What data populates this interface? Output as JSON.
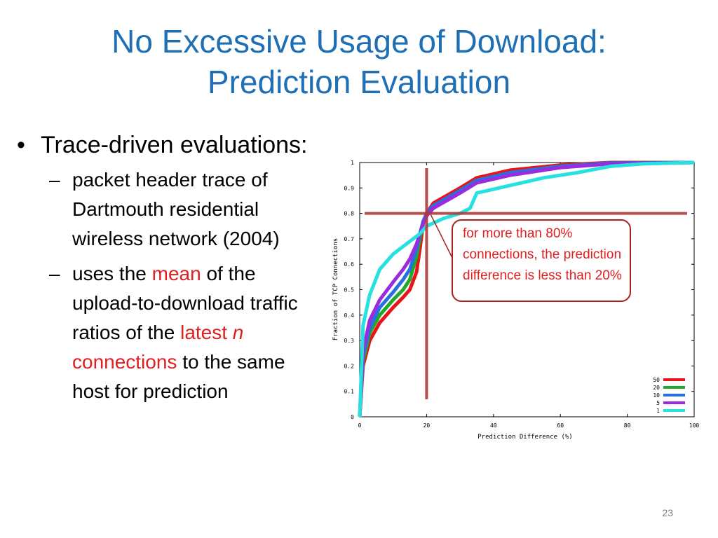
{
  "slide": {
    "title_line1": "No Excessive Usage of Download:",
    "title_line2": "Prediction Evaluation",
    "page_number": "23",
    "bullet1": {
      "marker": "•",
      "text": "Trace-driven evaluations:"
    },
    "sub1": {
      "marker": "–",
      "text": "packet header trace of Dartmouth residential wireless network (2004)"
    },
    "sub2": {
      "marker": "–",
      "part1": "uses the ",
      "highlight1": "mean",
      "part2": " of the upload-to-download traffic ratios of the ",
      "highlight2a": "latest ",
      "highlight2b": "n",
      "highlight2c": " connections",
      "part3": " to the same host for prediction"
    },
    "callout": "for more than 80% connections, the prediction difference is less than 20%",
    "colors": {
      "title": "#1f6fb5",
      "highlight": "#e02020",
      "callout_border": "#a82020",
      "crosshair": "#b03a3a"
    }
  },
  "chart_data": {
    "type": "line",
    "xlabel": "Prediction Difference (%)",
    "ylabel": "Fraction of TCP Connections",
    "xlim": [
      0,
      100
    ],
    "ylim": [
      0,
      1
    ],
    "xticks": [
      "0",
      "20",
      "40",
      "60",
      "80",
      "100"
    ],
    "yticks": [
      "0",
      "0.1",
      "0.2",
      "0.3",
      "0.4",
      "0.5",
      "0.6",
      "0.7",
      "0.8",
      "0.9",
      "1"
    ],
    "legend_position": "bottom-right",
    "crosshair": {
      "x": 20,
      "y": 0.8
    },
    "series": [
      {
        "name": "50",
        "color": "#e8141c",
        "points": [
          [
            0,
            0
          ],
          [
            1,
            0.2
          ],
          [
            3,
            0.3
          ],
          [
            6,
            0.37
          ],
          [
            10,
            0.43
          ],
          [
            13,
            0.47
          ],
          [
            15,
            0.5
          ],
          [
            17,
            0.57
          ],
          [
            18,
            0.66
          ],
          [
            19,
            0.76
          ],
          [
            20,
            0.8
          ],
          [
            22,
            0.84
          ],
          [
            30,
            0.9
          ],
          [
            35,
            0.94
          ],
          [
            45,
            0.97
          ],
          [
            60,
            0.99
          ],
          [
            75,
            1.0
          ],
          [
            100,
            1.0
          ]
        ]
      },
      {
        "name": "20",
        "color": "#22a82a",
        "points": [
          [
            0,
            0
          ],
          [
            1,
            0.22
          ],
          [
            3,
            0.33
          ],
          [
            6,
            0.4
          ],
          [
            10,
            0.46
          ],
          [
            13,
            0.5
          ],
          [
            15,
            0.54
          ],
          [
            17,
            0.63
          ],
          [
            18,
            0.7
          ],
          [
            19,
            0.76
          ],
          [
            20,
            0.8
          ],
          [
            22,
            0.83
          ],
          [
            30,
            0.89
          ],
          [
            35,
            0.93
          ],
          [
            45,
            0.96
          ],
          [
            60,
            0.985
          ],
          [
            75,
            0.998
          ],
          [
            100,
            1.0
          ]
        ]
      },
      {
        "name": "10",
        "color": "#2a6fe0",
        "points": [
          [
            0,
            0
          ],
          [
            1,
            0.24
          ],
          [
            3,
            0.35
          ],
          [
            6,
            0.43
          ],
          [
            10,
            0.49
          ],
          [
            13,
            0.54
          ],
          [
            15,
            0.58
          ],
          [
            17,
            0.66
          ],
          [
            18,
            0.72
          ],
          [
            19,
            0.77
          ],
          [
            20,
            0.8
          ],
          [
            22,
            0.83
          ],
          [
            30,
            0.89
          ],
          [
            35,
            0.93
          ],
          [
            45,
            0.96
          ],
          [
            60,
            0.985
          ],
          [
            75,
            0.998
          ],
          [
            100,
            1.0
          ]
        ]
      },
      {
        "name": "5",
        "color": "#9b2be0",
        "points": [
          [
            0,
            0
          ],
          [
            1,
            0.26
          ],
          [
            3,
            0.38
          ],
          [
            6,
            0.46
          ],
          [
            10,
            0.53
          ],
          [
            13,
            0.58
          ],
          [
            15,
            0.62
          ],
          [
            17,
            0.68
          ],
          [
            18,
            0.72
          ],
          [
            19,
            0.76
          ],
          [
            20,
            0.79
          ],
          [
            22,
            0.82
          ],
          [
            30,
            0.88
          ],
          [
            35,
            0.92
          ],
          [
            45,
            0.95
          ],
          [
            60,
            0.98
          ],
          [
            75,
            0.995
          ],
          [
            100,
            1.0
          ]
        ]
      },
      {
        "name": "1",
        "color": "#27e0e0",
        "points": [
          [
            0,
            0
          ],
          [
            1,
            0.36
          ],
          [
            3,
            0.48
          ],
          [
            6,
            0.58
          ],
          [
            10,
            0.64
          ],
          [
            13,
            0.67
          ],
          [
            15,
            0.69
          ],
          [
            18,
            0.72
          ],
          [
            20,
            0.75
          ],
          [
            25,
            0.78
          ],
          [
            30,
            0.8
          ],
          [
            33,
            0.82
          ],
          [
            35,
            0.88
          ],
          [
            45,
            0.91
          ],
          [
            55,
            0.94
          ],
          [
            65,
            0.96
          ],
          [
            75,
            0.985
          ],
          [
            85,
            0.995
          ],
          [
            100,
            1.0
          ]
        ]
      }
    ]
  }
}
